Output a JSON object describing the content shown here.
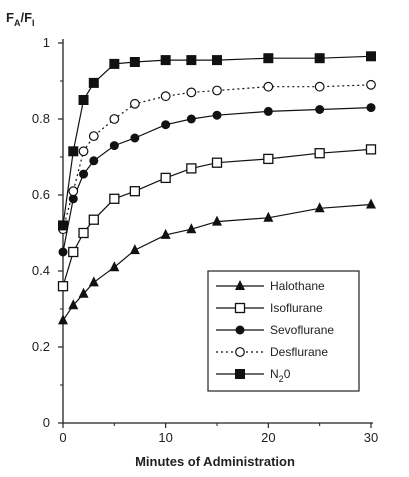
{
  "chart_data": {
    "type": "line",
    "xlabel": "Minutes of Administration",
    "ylabel": {
      "main": "F",
      "sub_a": "A",
      "sep": "/F",
      "sub_i": "I"
    },
    "xlim": [
      0,
      30
    ],
    "ylim": [
      0,
      1
    ],
    "xticks": [
      0,
      10,
      20,
      30
    ],
    "yticks": [
      {
        "value": 0,
        "label": "0"
      },
      {
        "value": 0.2,
        "label": "0.2"
      },
      {
        "value": 0.4,
        "label": "0.4"
      },
      {
        "value": 0.6,
        "label": "0.6"
      },
      {
        "value": 0.8,
        "label": "0.8"
      },
      {
        "value": 1,
        "label": "1"
      }
    ],
    "legend_position": "lower-right",
    "series": [
      {
        "name": "Halothane",
        "marker": "triangle-filled",
        "line": "solid",
        "x": [
          0,
          1,
          2,
          3,
          5,
          7,
          10,
          12.5,
          15,
          20,
          25,
          30
        ],
        "y": [
          0.27,
          0.31,
          0.34,
          0.37,
          0.41,
          0.455,
          0.495,
          0.51,
          0.53,
          0.54,
          0.565,
          0.575
        ]
      },
      {
        "name": "Isoflurane",
        "marker": "square-open",
        "line": "solid",
        "x": [
          0,
          1,
          2,
          3,
          5,
          7,
          10,
          12.5,
          15,
          20,
          25,
          30
        ],
        "y": [
          0.36,
          0.45,
          0.5,
          0.535,
          0.59,
          0.61,
          0.645,
          0.67,
          0.685,
          0.695,
          0.71,
          0.72
        ]
      },
      {
        "name": "Sevoflurane",
        "marker": "circle-filled",
        "line": "solid",
        "x": [
          0,
          1,
          2,
          3,
          5,
          7,
          10,
          12.5,
          15,
          20,
          25,
          30
        ],
        "y": [
          0.45,
          0.59,
          0.655,
          0.69,
          0.73,
          0.75,
          0.785,
          0.8,
          0.81,
          0.82,
          0.825,
          0.83
        ]
      },
      {
        "name": "Desflurane",
        "marker": "circle-open",
        "line": "dotted",
        "x": [
          0,
          1,
          2,
          3,
          5,
          7,
          10,
          12.5,
          15,
          20,
          25,
          30
        ],
        "y": [
          0.51,
          0.61,
          0.715,
          0.755,
          0.8,
          0.84,
          0.86,
          0.87,
          0.875,
          0.885,
          0.885,
          0.89
        ]
      },
      {
        "name": "N20",
        "label_parts": [
          "N",
          "2",
          "0"
        ],
        "marker": "square-filled",
        "line": "solid",
        "x": [
          0,
          1,
          2,
          3,
          5,
          7,
          10,
          12.5,
          15,
          20,
          25,
          30
        ],
        "y": [
          0.52,
          0.715,
          0.85,
          0.895,
          0.945,
          0.95,
          0.955,
          0.955,
          0.955,
          0.96,
          0.96,
          0.965
        ]
      }
    ]
  }
}
